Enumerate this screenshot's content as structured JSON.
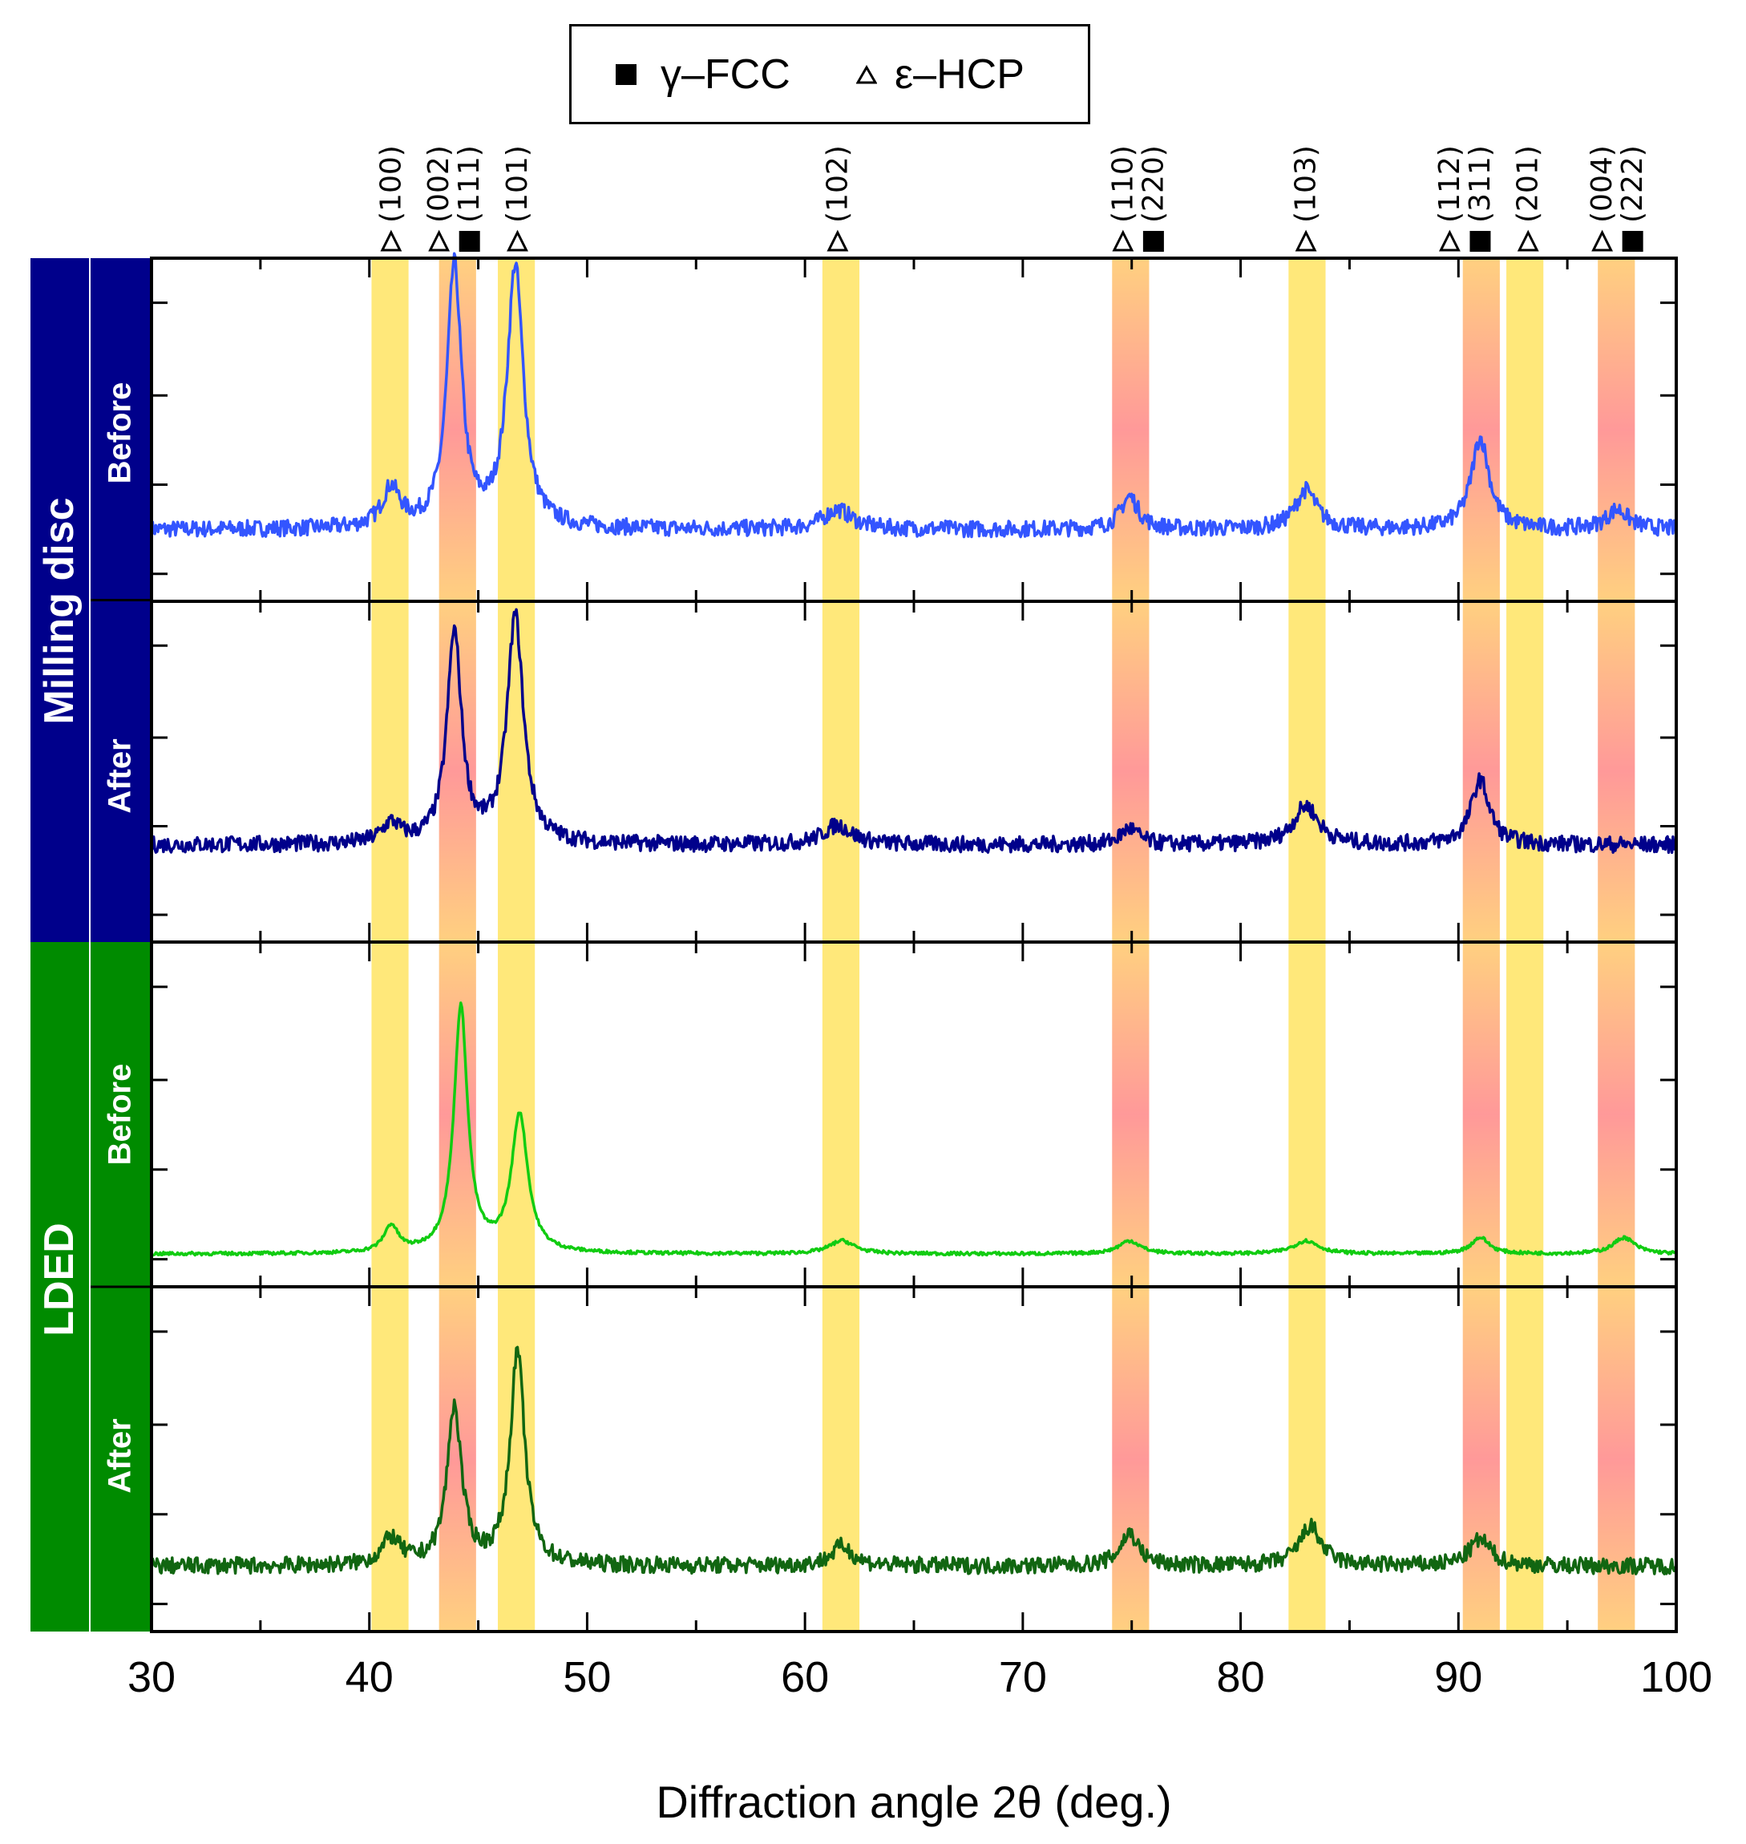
{
  "legend": {
    "fcc_label": "γ–FCC",
    "hcp_label": "ε–HCP",
    "fcc_icon": "filled-square-icon",
    "hcp_icon": "open-triangle-icon"
  },
  "groups": [
    {
      "label": "Milling disc",
      "color": "#00008b",
      "rows": [
        "Before",
        "After"
      ]
    },
    {
      "label": "LDED",
      "color": "#008b00",
      "rows": [
        "Before",
        "After"
      ]
    }
  ],
  "chart_data": {
    "type": "line",
    "xlabel": "Diffraction angle 2θ (deg.)",
    "xlim": [
      30,
      100
    ],
    "x_ticks": [
      30,
      40,
      50,
      60,
      70,
      80,
      90,
      100
    ],
    "series": [
      {
        "name": "Milling disc Before",
        "color": "#3355ff",
        "baseline": 0.22,
        "noise": 0.05,
        "peaks": [
          {
            "x": 41.0,
            "h": 0.12,
            "w": 0.5
          },
          {
            "x": 43.9,
            "h": 0.8,
            "w": 0.4
          },
          {
            "x": 46.7,
            "h": 0.8,
            "w": 0.45
          },
          {
            "x": 61.5,
            "h": 0.06,
            "w": 0.8
          },
          {
            "x": 74.9,
            "h": 0.1,
            "w": 0.5
          },
          {
            "x": 83.0,
            "h": 0.12,
            "w": 0.6
          },
          {
            "x": 91.0,
            "h": 0.28,
            "w": 0.5
          },
          {
            "x": 97.3,
            "h": 0.06,
            "w": 0.6
          }
        ]
      },
      {
        "name": "Milling disc After",
        "color": "#00008b",
        "baseline": 0.3,
        "noise": 0.05,
        "peaks": [
          {
            "x": 41.0,
            "h": 0.06,
            "w": 0.5
          },
          {
            "x": 43.9,
            "h": 0.65,
            "w": 0.4
          },
          {
            "x": 46.7,
            "h": 0.7,
            "w": 0.45
          },
          {
            "x": 61.5,
            "h": 0.06,
            "w": 0.8
          },
          {
            "x": 74.9,
            "h": 0.05,
            "w": 0.5
          },
          {
            "x": 83.0,
            "h": 0.12,
            "w": 0.7
          },
          {
            "x": 91.0,
            "h": 0.2,
            "w": 0.5
          }
        ]
      },
      {
        "name": "LDED Before",
        "color": "#11cc11",
        "baseline": 0.1,
        "noise": 0.01,
        "peaks": [
          {
            "x": 41.0,
            "h": 0.08,
            "w": 0.4
          },
          {
            "x": 44.2,
            "h": 0.75,
            "w": 0.38
          },
          {
            "x": 46.9,
            "h": 0.42,
            "w": 0.45
          },
          {
            "x": 61.7,
            "h": 0.04,
            "w": 0.7
          },
          {
            "x": 74.9,
            "h": 0.04,
            "w": 0.6
          },
          {
            "x": 83.0,
            "h": 0.04,
            "w": 0.7
          },
          {
            "x": 91.0,
            "h": 0.05,
            "w": 0.5
          },
          {
            "x": 97.6,
            "h": 0.05,
            "w": 0.6
          }
        ]
      },
      {
        "name": "LDED After",
        "color": "#116611",
        "baseline": 0.2,
        "noise": 0.05,
        "peaks": [
          {
            "x": 41.0,
            "h": 0.08,
            "w": 0.5
          },
          {
            "x": 43.9,
            "h": 0.48,
            "w": 0.4
          },
          {
            "x": 46.8,
            "h": 0.65,
            "w": 0.4
          },
          {
            "x": 61.7,
            "h": 0.06,
            "w": 0.6
          },
          {
            "x": 74.9,
            "h": 0.1,
            "w": 0.5
          },
          {
            "x": 83.2,
            "h": 0.12,
            "w": 0.6
          },
          {
            "x": 91.0,
            "h": 0.08,
            "w": 0.6
          }
        ]
      }
    ],
    "peak_markers": [
      {
        "label": "(100)",
        "phase": "hcp",
        "x": 41.0
      },
      {
        "label": "(002)",
        "phase": "hcp",
        "x": 43.2
      },
      {
        "label": "(111)",
        "phase": "fcc",
        "x": 44.6
      },
      {
        "label": "(101)",
        "phase": "hcp",
        "x": 46.8
      },
      {
        "label": "(102)",
        "phase": "hcp",
        "x": 61.5
      },
      {
        "label": "(110)",
        "phase": "hcp",
        "x": 74.6
      },
      {
        "label": "(220)",
        "phase": "fcc",
        "x": 76.0
      },
      {
        "label": "(103)",
        "phase": "hcp",
        "x": 83.0
      },
      {
        "label": "(112)",
        "phase": "hcp",
        "x": 89.6
      },
      {
        "label": "(311)",
        "phase": "fcc",
        "x": 91.0
      },
      {
        "label": "(201)",
        "phase": "hcp",
        "x": 93.2
      },
      {
        "label": "(004)",
        "phase": "hcp",
        "x": 96.6
      },
      {
        "label": "(222)",
        "phase": "fcc",
        "x": 98.0
      }
    ],
    "bands": [
      {
        "from": 40.1,
        "to": 41.8,
        "phase": "hcp"
      },
      {
        "from": 43.2,
        "to": 44.9,
        "phase": "fcc"
      },
      {
        "from": 45.9,
        "to": 47.6,
        "phase": "hcp"
      },
      {
        "from": 60.8,
        "to": 62.5,
        "phase": "hcp"
      },
      {
        "from": 74.1,
        "to": 75.8,
        "phase": "fcc"
      },
      {
        "from": 82.2,
        "to": 83.9,
        "phase": "hcp"
      },
      {
        "from": 90.2,
        "to": 91.9,
        "phase": "fcc"
      },
      {
        "from": 92.2,
        "to": 93.9,
        "phase": "hcp"
      },
      {
        "from": 96.4,
        "to": 98.1,
        "phase": "fcc"
      }
    ],
    "colors": {
      "hcp_band": "#ffe87a",
      "fcc_band_center": "#ff9999",
      "fcc_band_edge": "#ffd080"
    }
  }
}
